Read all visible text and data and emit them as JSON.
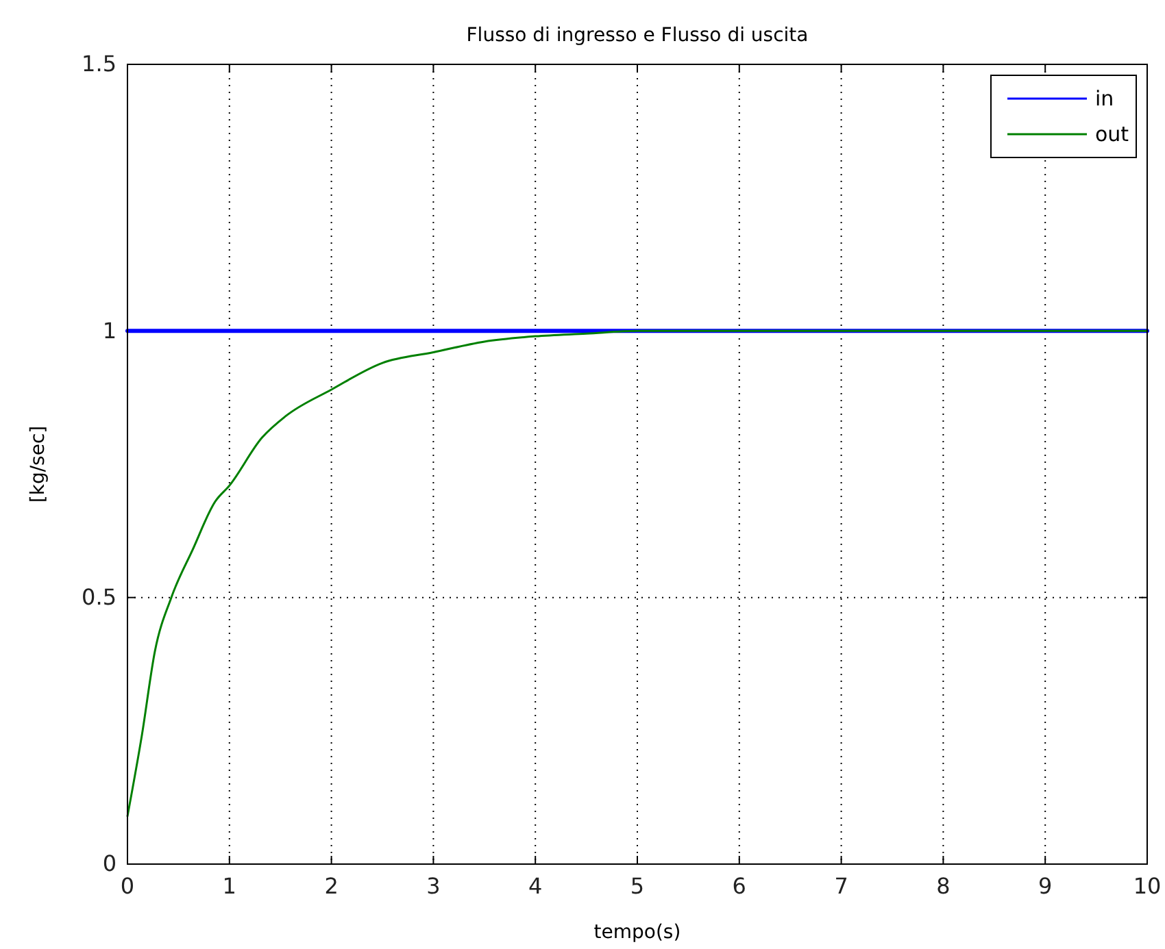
{
  "chart_data": {
    "type": "line",
    "title": "Flusso di ingresso e Flusso di uscita",
    "xlabel": "tempo(s)",
    "ylabel": "[kg/sec]",
    "series": [
      {
        "name": "in",
        "color": "#0000ff",
        "x": [
          0,
          10
        ],
        "values": [
          1,
          1
        ]
      },
      {
        "name": "out",
        "color": "#008000",
        "x": [
          0,
          0.14,
          0.27,
          0.43,
          0.64,
          0.86,
          1,
          1.32,
          1.55,
          2,
          2.5,
          3,
          3.5,
          4,
          4.5,
          5,
          10
        ],
        "values": [
          0.09,
          0.24,
          0.4,
          0.5,
          0.59,
          0.68,
          0.71,
          0.8,
          0.84,
          0.89,
          0.94,
          0.96,
          0.98,
          0.99,
          0.995,
          1,
          1
        ]
      }
    ],
    "xlim": [
      0,
      10
    ],
    "xticks": [
      0,
      1,
      2,
      3,
      4,
      5,
      6,
      7,
      8,
      9,
      10
    ],
    "ylim": [
      0,
      1.5
    ],
    "yticks": [
      0,
      0.5,
      1,
      1.5
    ],
    "grid": true,
    "legend": "top right",
    "line_style": "solid",
    "marker": "none"
  }
}
